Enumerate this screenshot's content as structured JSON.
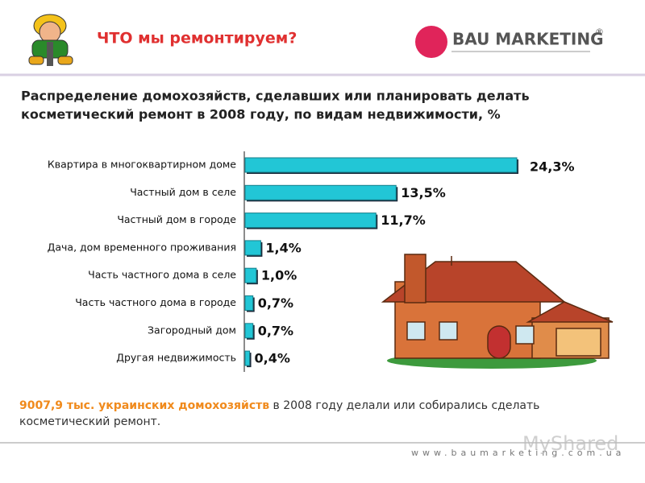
{
  "header": {
    "title": "ЧТО мы ремонтируем?",
    "logo": "BAU MARKETING",
    "logo_mark": "®"
  },
  "chart_data": {
    "type": "barh",
    "title": [
      "Распределение домохозяйств, сделавших или планировать делать",
      "косметический ремонт в 2008 году, по видам недвижимости, %"
    ],
    "categories": [
      "Квартира в многоквартирном доме",
      "Частный дом в селе",
      "Частный дом в городе",
      "Дача, дом временного проживания",
      "Часть частного дома в селе",
      "Часть частного дома в городе",
      "Загородный дом",
      "Другая недвижимость"
    ],
    "values": [
      24.3,
      13.5,
      11.7,
      1.4,
      1.0,
      0.7,
      0.7,
      0.4
    ],
    "value_labels": [
      "24,3%",
      "13,5%",
      "11,7%",
      "1,4%",
      "1,0%",
      "0,7%",
      "0,7%",
      "0,4%"
    ],
    "color": "#22c6d6"
  },
  "footer": {
    "highlight": "9007,9 тыс. украинских домохозяйств",
    "text": " в 2008 году делали или собирались сделать косметический ремонт.",
    "url": "www.baumarketing.com.ua",
    "watermark": "MyShared"
  }
}
